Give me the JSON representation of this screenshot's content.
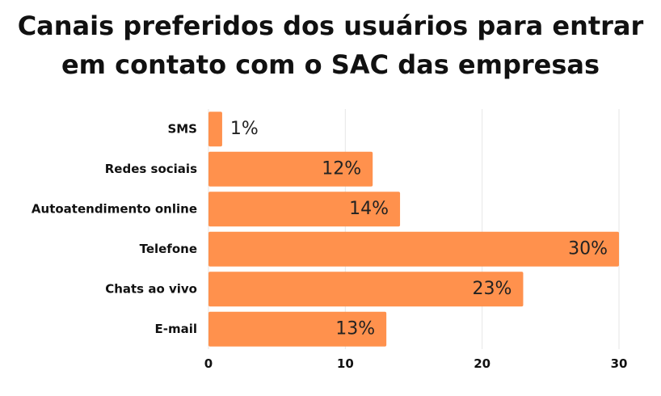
{
  "chart_data": {
    "type": "bar",
    "orientation": "horizontal",
    "title": "Canais preferidos dos usuários para entrar em contato com o SAC das empresas",
    "categories": [
      "SMS",
      "Redes sociais",
      "Autoatendimento online",
      "Telefone",
      "Chats ao vivo",
      "E-mail"
    ],
    "values": [
      1,
      12,
      14,
      30,
      23,
      13
    ],
    "data_labels": [
      "1%",
      "12%",
      "14%",
      "30%",
      "23%",
      "13%"
    ],
    "xlim": [
      0,
      30
    ],
    "x_ticks": [
      0,
      10,
      20,
      30
    ],
    "x_tick_labels": [
      "0",
      "10",
      "20",
      "30"
    ],
    "xlabel": "",
    "ylabel": "",
    "grid": true,
    "legend": "none",
    "bar_color": "#FF914D",
    "grid_color": "#E6E6E6"
  }
}
